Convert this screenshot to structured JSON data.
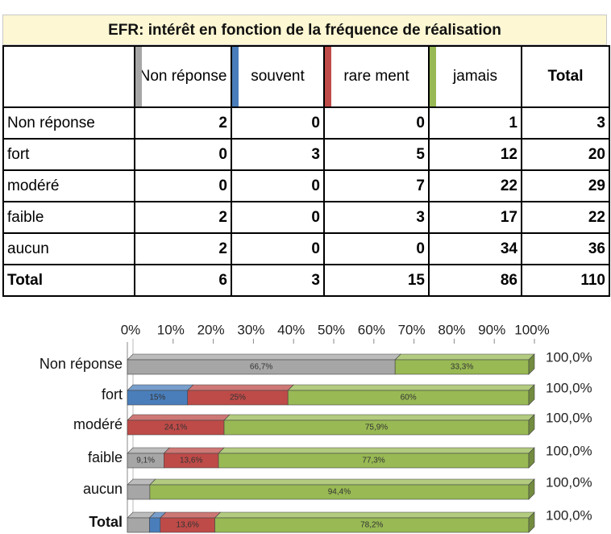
{
  "header": {
    "title": "EFR:  intérêt en fonction de la fréquence de réalisation"
  },
  "table": {
    "columns": [
      "Non réponse",
      "souvent",
      "rare ment",
      "jamais",
      "Total"
    ],
    "rows": [
      {
        "label": "Non réponse",
        "cells": [
          2,
          0,
          0,
          1,
          3
        ]
      },
      {
        "label": "fort",
        "cells": [
          0,
          3,
          5,
          12,
          20
        ]
      },
      {
        "label": "modéré",
        "cells": [
          0,
          0,
          7,
          22,
          29
        ]
      },
      {
        "label": "faible",
        "cells": [
          2,
          0,
          3,
          17,
          22
        ]
      },
      {
        "label": "aucun",
        "cells": [
          2,
          0,
          0,
          34,
          36
        ]
      },
      {
        "label": "Total",
        "cells": [
          6,
          3,
          15,
          86,
          110
        ]
      }
    ]
  },
  "chart_data": {
    "type": "bar",
    "orientation": "horizontal",
    "stacked": true,
    "three_d": true,
    "categories": [
      "Non réponse",
      "fort",
      "modéré",
      "faible",
      "aucun",
      "Total"
    ],
    "series": [
      {
        "color": "#a6a6a6",
        "values": [
          66.7,
          0,
          0,
          9.1,
          5.6,
          5.5
        ],
        "value_labels": [
          "66,7%",
          null,
          null,
          "9,1%",
          null,
          null
        ]
      },
      {
        "color": "#4a7ebb",
        "values": [
          0,
          15,
          0,
          0,
          0,
          2.7
        ],
        "value_labels": [
          null,
          "15%",
          null,
          null,
          null,
          null
        ]
      },
      {
        "color": "#be4b48",
        "values": [
          0,
          25,
          24.1,
          13.6,
          0,
          13.6
        ],
        "value_labels": [
          null,
          "25%",
          "24,1%",
          "13,6%",
          null,
          "13,6%"
        ]
      },
      {
        "color": "#98b954",
        "values": [
          33.3,
          60,
          75.9,
          77.3,
          94.4,
          78.2
        ],
        "value_labels": [
          "33,3%",
          "60%",
          "75,9%",
          "77,3%",
          "94,4%",
          "78,2%"
        ]
      }
    ],
    "totals": [
      100,
      100,
      100,
      100,
      100,
      100
    ],
    "total_labels": [
      "100,0%",
      "100,0%",
      "100,0%",
      "100,0%",
      "100,0%",
      "100,0%"
    ],
    "xlim": [
      0,
      100
    ],
    "xticks": [
      {
        "value": 0,
        "label": "0%"
      },
      {
        "value": 10,
        "label": "10%"
      },
      {
        "value": 20,
        "label": "20%"
      },
      {
        "value": 30,
        "label": "30%"
      },
      {
        "value": 40,
        "label": "40%"
      },
      {
        "value": 50,
        "label": "50%"
      },
      {
        "value": 60,
        "label": "60%"
      },
      {
        "value": 70,
        "label": "70%"
      },
      {
        "value": 80,
        "label": "80%"
      },
      {
        "value": 90,
        "label": "90%"
      },
      {
        "value": 100,
        "label": "100%"
      }
    ]
  }
}
